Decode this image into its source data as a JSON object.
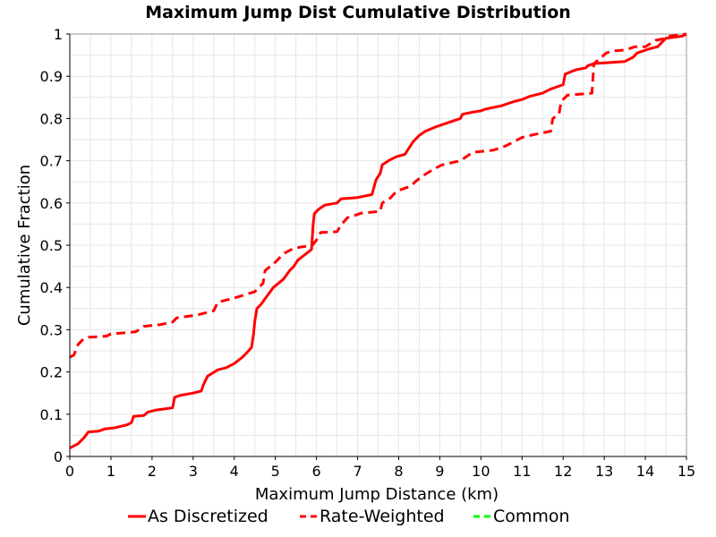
{
  "chart_data": {
    "type": "line",
    "title": "Maximum Jump Dist Cumulative Distribution",
    "xlabel": "Maximum Jump Distance (km)",
    "ylabel": "Cumulative Fraction",
    "xlim": [
      0,
      15
    ],
    "ylim": [
      0,
      1
    ],
    "xticks": [
      0,
      1,
      2,
      3,
      4,
      5,
      6,
      7,
      8,
      9,
      10,
      11,
      12,
      13,
      14,
      15
    ],
    "yticks": [
      0,
      0.1,
      0.2,
      0.3,
      0.4,
      0.5,
      0.6,
      0.7,
      0.8,
      0.9,
      1
    ],
    "ytick_labels": [
      "0",
      "0.1",
      "0.2",
      "0.3",
      "0.4",
      "0.5",
      "0.6",
      "0.7",
      "0.8",
      "0.9",
      "1"
    ],
    "grid": true,
    "legend_position": "bottom",
    "series": [
      {
        "name": "As Discretized",
        "color": "#ff0000",
        "dash": "solid",
        "points": [
          [
            0,
            0.02
          ],
          [
            0.2,
            0.03
          ],
          [
            0.35,
            0.045
          ],
          [
            0.45,
            0.058
          ],
          [
            0.7,
            0.06
          ],
          [
            0.85,
            0.065
          ],
          [
            1.1,
            0.068
          ],
          [
            1.4,
            0.075
          ],
          [
            1.5,
            0.08
          ],
          [
            1.55,
            0.095
          ],
          [
            1.8,
            0.097
          ],
          [
            1.9,
            0.105
          ],
          [
            2.1,
            0.11
          ],
          [
            2.5,
            0.115
          ],
          [
            2.55,
            0.14
          ],
          [
            2.7,
            0.145
          ],
          [
            3.0,
            0.15
          ],
          [
            3.2,
            0.155
          ],
          [
            3.25,
            0.17
          ],
          [
            3.35,
            0.19
          ],
          [
            3.6,
            0.205
          ],
          [
            3.8,
            0.21
          ],
          [
            4.0,
            0.22
          ],
          [
            4.2,
            0.235
          ],
          [
            4.3,
            0.245
          ],
          [
            4.42,
            0.258
          ],
          [
            4.47,
            0.29
          ],
          [
            4.5,
            0.32
          ],
          [
            4.55,
            0.35
          ],
          [
            4.65,
            0.36
          ],
          [
            4.8,
            0.38
          ],
          [
            4.95,
            0.4
          ],
          [
            5.2,
            0.42
          ],
          [
            5.35,
            0.44
          ],
          [
            5.45,
            0.45
          ],
          [
            5.55,
            0.465
          ],
          [
            5.75,
            0.48
          ],
          [
            5.88,
            0.49
          ],
          [
            5.92,
            0.55
          ],
          [
            5.95,
            0.575
          ],
          [
            6.05,
            0.585
          ],
          [
            6.2,
            0.595
          ],
          [
            6.5,
            0.6
          ],
          [
            6.6,
            0.61
          ],
          [
            7.0,
            0.613
          ],
          [
            7.35,
            0.62
          ],
          [
            7.45,
            0.655
          ],
          [
            7.55,
            0.67
          ],
          [
            7.6,
            0.69
          ],
          [
            7.75,
            0.7
          ],
          [
            7.95,
            0.71
          ],
          [
            8.15,
            0.715
          ],
          [
            8.25,
            0.73
          ],
          [
            8.35,
            0.745
          ],
          [
            8.5,
            0.76
          ],
          [
            8.65,
            0.77
          ],
          [
            8.9,
            0.78
          ],
          [
            9.2,
            0.79
          ],
          [
            9.5,
            0.8
          ],
          [
            9.55,
            0.81
          ],
          [
            9.8,
            0.815
          ],
          [
            10.0,
            0.818
          ],
          [
            10.1,
            0.822
          ],
          [
            10.5,
            0.83
          ],
          [
            10.8,
            0.84
          ],
          [
            11.0,
            0.845
          ],
          [
            11.2,
            0.853
          ],
          [
            11.5,
            0.86
          ],
          [
            11.7,
            0.87
          ],
          [
            11.8,
            0.873
          ],
          [
            12.0,
            0.88
          ],
          [
            12.05,
            0.905
          ],
          [
            12.3,
            0.915
          ],
          [
            12.55,
            0.92
          ],
          [
            12.6,
            0.925
          ],
          [
            12.75,
            0.93
          ],
          [
            13.5,
            0.935
          ],
          [
            13.7,
            0.945
          ],
          [
            13.8,
            0.955
          ],
          [
            14.1,
            0.965
          ],
          [
            14.3,
            0.97
          ],
          [
            14.4,
            0.98
          ],
          [
            14.5,
            0.99
          ],
          [
            14.9,
            0.995
          ],
          [
            15,
            1.0
          ]
        ]
      },
      {
        "name": "Rate-Weighted",
        "color": "#ff0000",
        "dash": "dashed",
        "points": [
          [
            0,
            0.235
          ],
          [
            0.1,
            0.24
          ],
          [
            0.2,
            0.265
          ],
          [
            0.3,
            0.275
          ],
          [
            0.45,
            0.282
          ],
          [
            0.9,
            0.285
          ],
          [
            1.0,
            0.29
          ],
          [
            1.6,
            0.295
          ],
          [
            1.8,
            0.308
          ],
          [
            2.2,
            0.312
          ],
          [
            2.5,
            0.318
          ],
          [
            2.6,
            0.328
          ],
          [
            3.1,
            0.335
          ],
          [
            3.5,
            0.345
          ],
          [
            3.6,
            0.365
          ],
          [
            4.0,
            0.375
          ],
          [
            4.5,
            0.39
          ],
          [
            4.7,
            0.41
          ],
          [
            4.75,
            0.44
          ],
          [
            5.0,
            0.46
          ],
          [
            5.2,
            0.48
          ],
          [
            5.45,
            0.493
          ],
          [
            5.9,
            0.5
          ],
          [
            6.0,
            0.512
          ],
          [
            6.1,
            0.53
          ],
          [
            6.5,
            0.532
          ],
          [
            6.6,
            0.548
          ],
          [
            6.75,
            0.565
          ],
          [
            7.1,
            0.576
          ],
          [
            7.55,
            0.58
          ],
          [
            7.6,
            0.6
          ],
          [
            7.8,
            0.612
          ],
          [
            7.95,
            0.628
          ],
          [
            8.3,
            0.64
          ],
          [
            8.4,
            0.65
          ],
          [
            8.6,
            0.665
          ],
          [
            8.85,
            0.68
          ],
          [
            9.05,
            0.69
          ],
          [
            9.5,
            0.7
          ],
          [
            9.65,
            0.71
          ],
          [
            9.8,
            0.72
          ],
          [
            10.3,
            0.725
          ],
          [
            10.6,
            0.735
          ],
          [
            10.8,
            0.745
          ],
          [
            11.0,
            0.755
          ],
          [
            11.3,
            0.762
          ],
          [
            11.7,
            0.77
          ],
          [
            11.75,
            0.8
          ],
          [
            11.9,
            0.81
          ],
          [
            11.95,
            0.84
          ],
          [
            12.1,
            0.855
          ],
          [
            12.7,
            0.86
          ],
          [
            12.75,
            0.93
          ],
          [
            13.05,
            0.955
          ],
          [
            13.2,
            0.96
          ],
          [
            13.5,
            0.962
          ],
          [
            13.75,
            0.97
          ],
          [
            14.0,
            0.97
          ],
          [
            14.25,
            0.985
          ],
          [
            14.5,
            0.99
          ],
          [
            14.6,
            0.995
          ],
          [
            15,
            1.0
          ]
        ]
      },
      {
        "name": "Common",
        "color": "#00ff00",
        "dash": "dashed",
        "points": []
      }
    ]
  }
}
